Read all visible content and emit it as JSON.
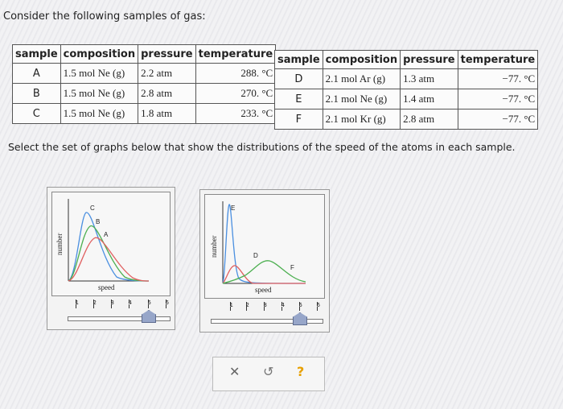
{
  "question": "Consider the following samples of gas:",
  "table_headers": [
    "sample",
    "composition",
    "pressure",
    "temperature"
  ],
  "samples_left": [
    {
      "id": "A",
      "composition": "1.5 mol Ne (g)",
      "pressure": "2.2 atm",
      "temperature": "288. °C"
    },
    {
      "id": "B",
      "composition": "1.5 mol Ne (g)",
      "pressure": "2.8 atm",
      "temperature": "270. °C"
    },
    {
      "id": "C",
      "composition": "1.5 mol Ne (g)",
      "pressure": "1.8 atm",
      "temperature": "233. °C"
    }
  ],
  "samples_right": [
    {
      "id": "D",
      "composition": "2.1 mol Ar (g)",
      "pressure": "1.3 atm",
      "temperature": "−77. °C"
    },
    {
      "id": "E",
      "composition": "2.1 mol Ne (g)",
      "pressure": "1.4 atm",
      "temperature": "−77. °C"
    },
    {
      "id": "F",
      "composition": "2.1 mol Kr (g)",
      "pressure": "2.8 atm",
      "temperature": "−77. °C"
    }
  ],
  "instruction": "Select the set of graphs below that show the distributions of the speed of the atoms in each sample.",
  "graph1": {
    "ylabel": "number",
    "xlabel": "speed",
    "curve_labels": [
      "C",
      "B",
      "A"
    ],
    "slider_ticks": [
      "1",
      "2",
      "3",
      "4",
      "5",
      "6"
    ],
    "slider_value": "5"
  },
  "graph2": {
    "ylabel": "number",
    "xlabel": "speed",
    "curve_labels": [
      "E",
      "D",
      "F"
    ],
    "slider_ticks": [
      "1",
      "2",
      "3",
      "4",
      "5",
      "6"
    ],
    "slider_value": "5"
  },
  "actions": {
    "clear": "✕",
    "undo": "↺",
    "help": "?"
  },
  "colors": {
    "curve_red": "#e06060",
    "curve_green": "#4caf50",
    "curve_blue": "#4a8fe0",
    "accent": "#e8a000"
  }
}
